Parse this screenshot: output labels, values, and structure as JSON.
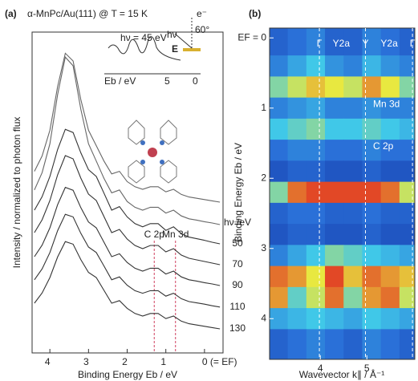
{
  "chart_data": [
    {
      "type": "line",
      "panel": "(a)",
      "title": "α-MnPc/Au(111) @ T = 15 K",
      "xlabel": "Binding Energy Eb / eV",
      "ylabel": "Intensity / normalized to photon flux",
      "xlim": [
        4.46,
        -0.48
      ],
      "xticks": [
        4,
        3,
        2,
        1,
        {
          "value": 0,
          "label": "0 (= EF)"
        }
      ],
      "ylim": [
        0,
        100
      ],
      "x": [
        4.4,
        4.2,
        4.0,
        3.8,
        3.6,
        3.4,
        3.2,
        3.0,
        2.8,
        2.6,
        2.4,
        2.2,
        2.0,
        1.8,
        1.6,
        1.4,
        1.2,
        1.0,
        0.8,
        0.6,
        0.4,
        0.2,
        0.0,
        -0.2,
        -0.4
      ],
      "legend_title": "hν /eV",
      "series": [
        {
          "color": "#666666",
          "values": [
            56.6,
            61.4,
            69.4,
            83,
            93.4,
            91,
            79,
            69.4,
            64.6,
            59.8,
            55.8,
            56.6,
            53.4,
            51.8,
            51,
            51.8,
            51.8,
            50.2,
            51,
            49.4,
            48.6,
            48.2,
            47.8,
            47.4,
            47
          ]
        },
        {
          "color": "#666666",
          "values": [
            50.8,
            56.2,
            65.2,
            80.5,
            92.2,
            89.5,
            76,
            65.2,
            59.8,
            54.4,
            49.9,
            50.8,
            47.2,
            45.4,
            44.5,
            45.4,
            45.4,
            43.6,
            44.5,
            42.7,
            41.8,
            41.4,
            40.9,
            40.5,
            40
          ]
        },
        {
          "name": "50",
          "color": "#333333",
          "values": [
            44.5,
            48.7,
            55,
            63.4,
            69.7,
            68.7,
            62.4,
            57.1,
            55,
            49.8,
            44.5,
            45.6,
            42.4,
            40.3,
            39.3,
            40.3,
            40.3,
            38.2,
            39.3,
            37.2,
            36.1,
            35.6,
            35.1,
            34.5,
            34
          ]
        },
        {
          "name": "70",
          "color": "#333333",
          "values": [
            37.5,
            41.5,
            47.5,
            55.5,
            61.5,
            60.5,
            54.5,
            49.5,
            47.5,
            42.5,
            37.5,
            38.5,
            35.5,
            33.5,
            32.5,
            33.5,
            33.5,
            31.5,
            32.5,
            30.5,
            29.5,
            29,
            28.5,
            28,
            27.5
          ]
        },
        {
          "name": "90",
          "color": "#333333",
          "values": [
            30,
            33.6,
            39,
            46.2,
            51.6,
            50.7,
            45.3,
            40.8,
            39,
            34.5,
            30,
            30.9,
            28.2,
            26.4,
            25.5,
            26.4,
            26.4,
            24.6,
            25.5,
            23.7,
            22.8,
            22.4,
            21.9,
            21.5,
            21
          ]
        },
        {
          "name": "110",
          "color": "#333333",
          "values": [
            22.8,
            26.2,
            31.3,
            38.1,
            43.2,
            42.4,
            37.3,
            33,
            31.3,
            27.1,
            22.8,
            23.7,
            21.1,
            19.4,
            18.6,
            19.4,
            19.4,
            17.7,
            18.6,
            16.9,
            16,
            15.6,
            15.2,
            14.7,
            14.3
          ]
        },
        {
          "name": "130",
          "color": "#333333",
          "values": [
            15.5,
            18.7,
            23.5,
            29.9,
            34.7,
            33.9,
            29.1,
            25.1,
            23.5,
            19.5,
            15.5,
            16.3,
            13.9,
            12.3,
            11.5,
            12.3,
            12.3,
            10.7,
            11.5,
            9.9,
            9.1,
            8.7,
            8.3,
            7.9,
            7.5
          ]
        }
      ],
      "annotations": [
        {
          "text": "C 2p",
          "x": 1.3
        },
        {
          "text": "Mn 3d",
          "x": 0.75
        }
      ],
      "annotation_color": "#d04060",
      "inset_labels": {
        "title": "hν = 45 eV",
        "axis": "Eb / eV",
        "tick_left": "5",
        "tick_right": "0",
        "angle": "60°",
        "electron": "e⁻",
        "photon": "hν",
        "field": "E"
      }
    },
    {
      "type": "heatmap",
      "panel": "(b)",
      "xlabel": "Wavevector k∥ / Å⁻¹",
      "ylabel": "Binding Energy Eb / eV",
      "xlim": [
        2.91,
        6.03
      ],
      "xticks": [
        4,
        5
      ],
      "ylim": [
        -0.14,
        4.58
      ],
      "yticks": [
        {
          "value": 0,
          "label": "EF = 0"
        },
        1,
        2,
        3,
        4
      ],
      "colors": [
        "#1030a0",
        "#2a70d8",
        "#40c8e8",
        "#e8e840",
        "#e02020"
      ],
      "x": [
        3.1,
        3.5,
        3.9,
        4.3,
        4.7,
        5.1,
        5.5,
        5.9
      ],
      "y": [
        0.1,
        0.4,
        0.7,
        1.0,
        1.3,
        1.6,
        1.9,
        2.2,
        2.5,
        2.8,
        3.1,
        3.4,
        3.7,
        4.0,
        4.3
      ],
      "z": [
        [
          0.2,
          0.25,
          0.3,
          0.2,
          0.2,
          0.3,
          0.25,
          0.2
        ],
        [
          0.3,
          0.4,
          0.5,
          0.35,
          0.3,
          0.45,
          0.35,
          0.3
        ],
        [
          0.6,
          0.7,
          0.8,
          0.75,
          0.7,
          0.85,
          0.75,
          0.6
        ],
        [
          0.3,
          0.35,
          0.4,
          0.3,
          0.3,
          0.35,
          0.3,
          0.3
        ],
        [
          0.5,
          0.55,
          0.6,
          0.5,
          0.5,
          0.55,
          0.5,
          0.45
        ],
        [
          0.25,
          0.3,
          0.3,
          0.25,
          0.25,
          0.3,
          0.25,
          0.25
        ],
        [
          0.15,
          0.2,
          0.2,
          0.15,
          0.15,
          0.2,
          0.15,
          0.15
        ],
        [
          0.6,
          0.9,
          0.95,
          0.95,
          0.95,
          0.95,
          0.9,
          0.7
        ],
        [
          0.2,
          0.25,
          0.25,
          0.2,
          0.2,
          0.25,
          0.2,
          0.2
        ],
        [
          0.15,
          0.2,
          0.2,
          0.15,
          0.15,
          0.2,
          0.15,
          0.15
        ],
        [
          0.3,
          0.4,
          0.5,
          0.6,
          0.55,
          0.5,
          0.45,
          0.4
        ],
        [
          0.9,
          0.85,
          0.75,
          0.95,
          0.8,
          0.9,
          0.85,
          0.8
        ],
        [
          0.85,
          0.55,
          0.7,
          0.9,
          0.6,
          0.85,
          0.9,
          0.7
        ],
        [
          0.4,
          0.45,
          0.5,
          0.45,
          0.4,
          0.5,
          0.45,
          0.4
        ],
        [
          0.2,
          0.25,
          0.3,
          0.25,
          0.2,
          0.3,
          0.25,
          0.2
        ]
      ],
      "zlim": [
        0,
        1
      ],
      "points": [
        {
          "label": "Γ",
          "x": 3.98,
          "dashed": true
        },
        {
          "label": "Y2a",
          "x": 4.45
        },
        {
          "label": "Y",
          "x": 4.97,
          "dashed": true
        },
        {
          "label": "Y2a",
          "x": 5.48
        },
        {
          "label": "Γ",
          "x": 5.98,
          "dashed": true
        }
      ],
      "annotations": [
        {
          "text": "Mn 3d",
          "y": 0.95
        },
        {
          "text": "C 2p",
          "y": 1.55
        }
      ]
    }
  ]
}
